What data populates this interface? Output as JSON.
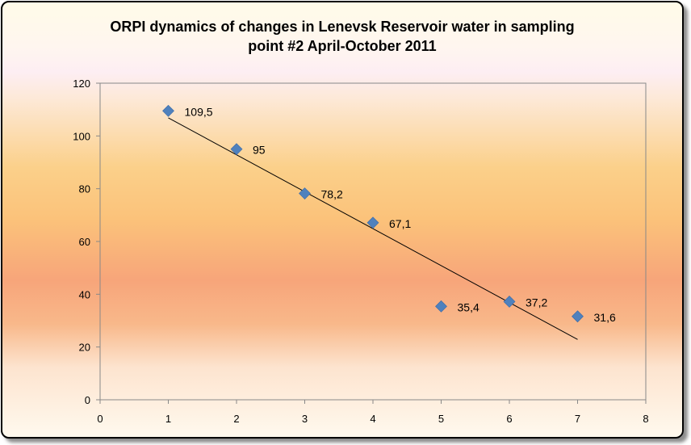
{
  "chart_data": {
    "type": "scatter",
    "title": "ORPI dynamics  of changes in Lenevsk Reservoir  water in sampling\npoint #2 April-October  2011",
    "xlabel": "",
    "ylabel": "",
    "xlim": [
      0,
      8
    ],
    "ylim": [
      0,
      120
    ],
    "x_ticks": [
      0,
      1,
      2,
      3,
      4,
      5,
      6,
      7,
      8
    ],
    "y_ticks": [
      0,
      20,
      40,
      60,
      80,
      100,
      120
    ],
    "grid": false,
    "legend": "none",
    "marker_color": "#4f81bd",
    "trendline_color": "#000000",
    "series": [
      {
        "x": [
          1,
          2,
          3,
          4,
          5,
          6,
          7
        ],
        "y": [
          109.5,
          95,
          78.2,
          67.1,
          35.4,
          37.2,
          31.6
        ],
        "data_labels": [
          "109,5",
          "95",
          "78,2",
          "67,1",
          "35,4",
          "37,2",
          "31,6"
        ]
      }
    ],
    "trendline": {
      "type": "linear",
      "x_range": [
        1,
        7
      ]
    }
  }
}
